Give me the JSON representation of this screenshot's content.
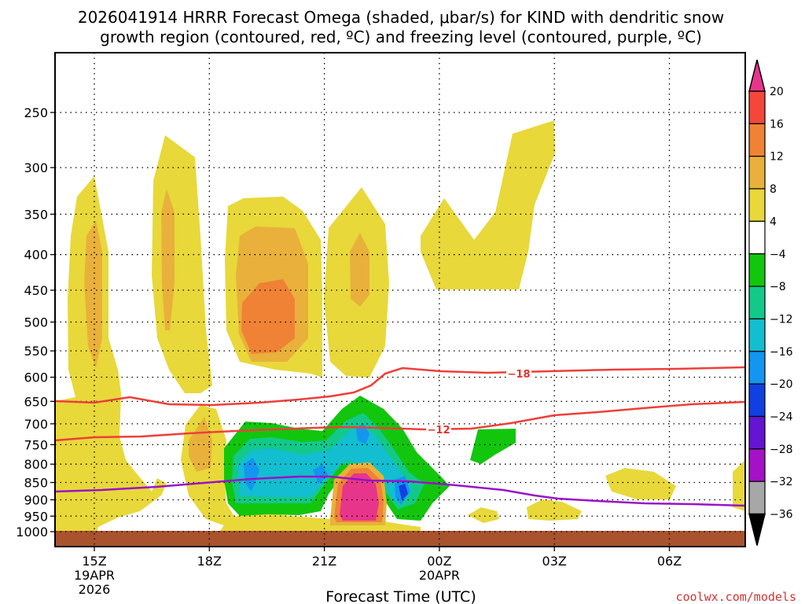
{
  "title": {
    "line1": "2026041914 HRRR Forecast Omega (shaded, μbar/s) for KIND with dendritic snow",
    "line2": "growth region (contoured, red, ºC) and freezing level (contoured, purple, ºC)"
  },
  "credit": "coolwx.com/models",
  "chart_data": {
    "type": "heatmap",
    "title": "2026041914 HRRR Forecast Omega (shaded, μbar/s) for KIND with dendritic snow growth region (contoured, red, ºC) and freezing level (contoured, purple, ºC)",
    "xlabel": "Forecast Time (UTC)",
    "ylabel": "",
    "x_ticks": [
      {
        "label": "15Z",
        "sub": [
          "19APR",
          "2026"
        ]
      },
      {
        "label": "18Z",
        "sub": []
      },
      {
        "label": "21Z",
        "sub": []
      },
      {
        "label": "00Z",
        "sub": [
          "20APR"
        ]
      },
      {
        "label": "03Z",
        "sub": []
      },
      {
        "label": "06Z",
        "sub": []
      }
    ],
    "y_ticks": [
      "250",
      "300",
      "350",
      "400",
      "450",
      "500",
      "550",
      "600",
      "650",
      "700",
      "750",
      "800",
      "850",
      "900",
      "950",
      "1000"
    ],
    "y_values_hpa": [
      250,
      300,
      350,
      400,
      450,
      500,
      550,
      600,
      650,
      700,
      750,
      800,
      850,
      900,
      950,
      1000
    ],
    "y_scale": "log-pressure, increasing downward",
    "grid": true,
    "colorbar": {
      "levels": [
        "20",
        "16",
        "12",
        "8",
        "4",
        "−4",
        "−8",
        "−12",
        "−16",
        "−20",
        "−24",
        "−28",
        "−32",
        "−36"
      ],
      "colors": [
        "#e8358c",
        "#f2473a",
        "#ef8235",
        "#e9b13b",
        "#e8d83a",
        "#ffffff",
        "#12c60e",
        "#12c98a",
        "#12bed0",
        "#1296f0",
        "#1040e2",
        "#6514d2",
        "#a412c8",
        "#a7a7a7",
        "#000000"
      ]
    },
    "contour_labels": [
      {
        "text": "−18",
        "series": "dendritic snow growth upper bound"
      },
      {
        "text": "−12",
        "series": "dendritic snow growth lower bound"
      }
    ],
    "fill_colors": {
      "pos4": "#e8d83a",
      "pos8": "#e9b13b",
      "pos12": "#ef8235",
      "pos20": "#e8358c",
      "neg4": "#12c60e",
      "neg8": "#12c98a",
      "neg12": "#12bed0",
      "neg16": "#1296f0",
      "neg20": "#1040e2",
      "ground": "#a8522e",
      "dgz_line": "#ee3f3a",
      "frz_line": "#9a12c8"
    }
  }
}
